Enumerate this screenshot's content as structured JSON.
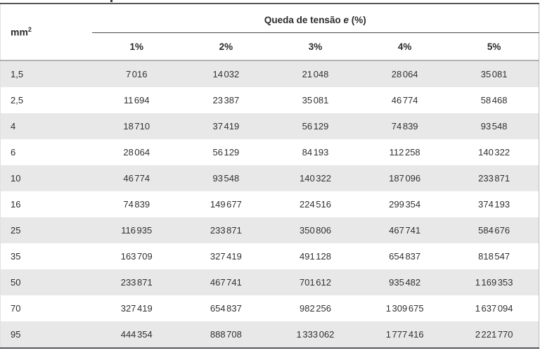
{
  "table": {
    "corner_header": {
      "base": "mm",
      "sup": "2"
    },
    "group_header": {
      "prefix": "Queda de tensão ",
      "emphasis": "e",
      "suffix": " (%)"
    },
    "columns": [
      "1%",
      "2%",
      "3%",
      "4%",
      "5%"
    ],
    "rows": [
      {
        "label": "1,5",
        "values": [
          "7 016",
          "14 032",
          "21 048",
          "28 064",
          "35 081"
        ]
      },
      {
        "label": "2,5",
        "values": [
          "11 694",
          "23 387",
          "35 081",
          "46 774",
          "58 468"
        ]
      },
      {
        "label": "4",
        "values": [
          "18 710",
          "37 419",
          "56 129",
          "74 839",
          "93 548"
        ]
      },
      {
        "label": "6",
        "values": [
          "28 064",
          "56 129",
          "84 193",
          "112 258",
          "140 322"
        ]
      },
      {
        "label": "10",
        "values": [
          "46 774",
          "93 548",
          "140 322",
          "187 096",
          "233 871"
        ]
      },
      {
        "label": "16",
        "values": [
          "74 839",
          "149 677",
          "224 516",
          "299 354",
          "374 193"
        ]
      },
      {
        "label": "25",
        "values": [
          "116 935",
          "233 871",
          "350 806",
          "467 741",
          "584 676"
        ]
      },
      {
        "label": "35",
        "values": [
          "163 709",
          "327 419",
          "491 128",
          "654 837",
          "818 547"
        ]
      },
      {
        "label": "50",
        "values": [
          "233 871",
          "467 741",
          "701 612",
          "935 482",
          "1 169 353"
        ]
      },
      {
        "label": "70",
        "values": [
          "327 419",
          "654 837",
          "982 256",
          "1 309 675",
          "1 637 094"
        ]
      },
      {
        "label": "95",
        "values": [
          "444 354",
          "888 708",
          "1 333 062",
          "1 777 416",
          "2 221 770"
        ]
      }
    ]
  },
  "colors": {
    "stripe": "#e8e8e8",
    "rule_dark": "#55565a",
    "rule_medium": "#b2b2b2",
    "text": "#2d2b2c"
  }
}
